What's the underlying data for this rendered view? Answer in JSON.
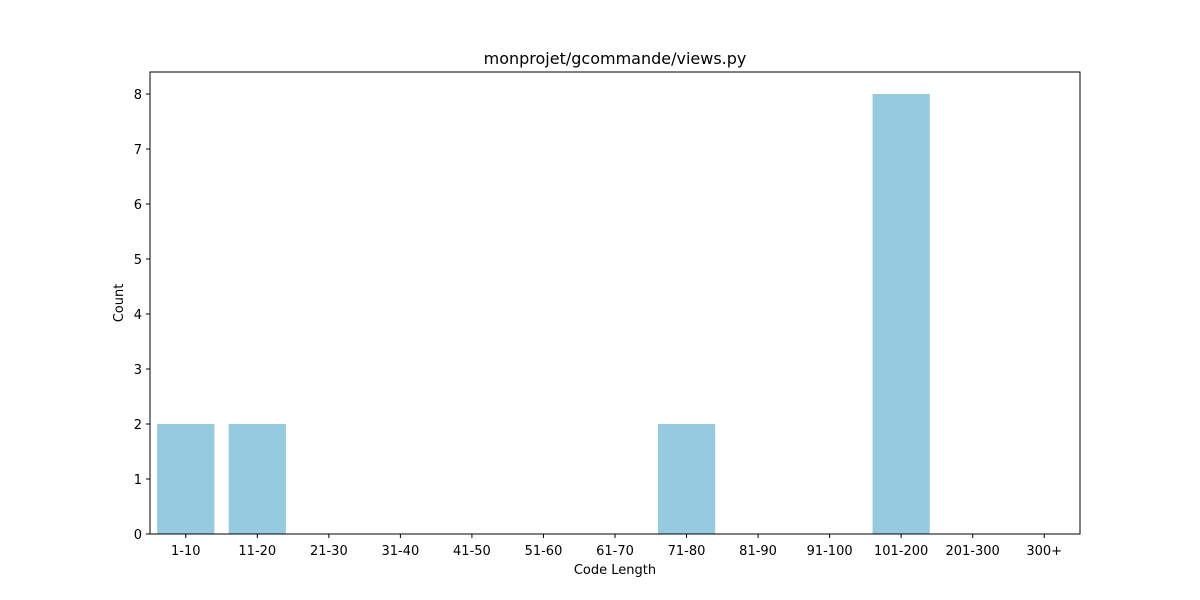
{
  "chart_data": {
    "type": "bar",
    "title": "monprojet/gcommande/views.py",
    "xlabel": "Code Length",
    "ylabel": "Count",
    "categories": [
      "1-10",
      "11-20",
      "21-30",
      "31-40",
      "41-50",
      "51-60",
      "61-70",
      "71-80",
      "81-90",
      "91-100",
      "101-200",
      "201-300",
      "300+"
    ],
    "values": [
      2,
      2,
      0,
      0,
      0,
      0,
      0,
      2,
      0,
      0,
      8,
      0,
      0
    ],
    "ylim": [
      0,
      8.4
    ],
    "yticks": [
      0,
      1,
      2,
      3,
      4,
      5,
      6,
      7,
      8
    ],
    "bar_color": "#95cadf",
    "grid": false,
    "legend": "none"
  }
}
